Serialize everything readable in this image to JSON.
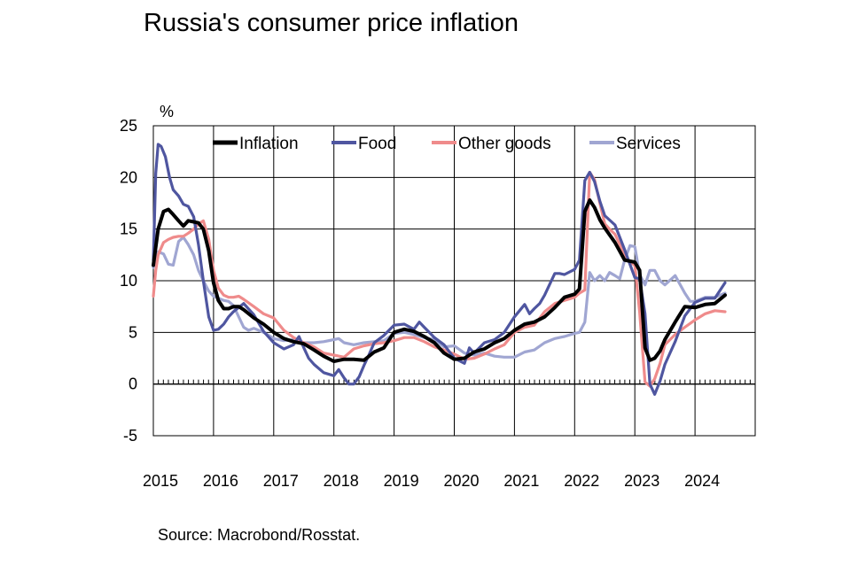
{
  "title": "Russia's consumer price inflation",
  "source": "Source: Macrobond/Rosstat.",
  "colors": {
    "Inflation": "#000000",
    "Food": "#4f56a0",
    "Other goods": "#ef8b8b",
    "Services": "#a0a6d2"
  },
  "chart_data": {
    "type": "line",
    "title": "Russia's consumer price inflation",
    "ylabel": "%",
    "xlabel": "",
    "ylim": [
      -5,
      25
    ],
    "xlim": [
      2015,
      2025
    ],
    "yticks": [
      -5,
      0,
      5,
      10,
      15,
      20,
      25
    ],
    "xticks": [
      "2015",
      "2016",
      "2017",
      "2018",
      "2019",
      "2020",
      "2021",
      "2022",
      "2023",
      "2024"
    ],
    "grid": true,
    "legend": "top",
    "series": [
      {
        "name": "Inflation",
        "x": [
          2015.0,
          2015.08,
          2015.17,
          2015.25,
          2015.33,
          2015.42,
          2015.5,
          2015.58,
          2015.67,
          2015.75,
          2015.83,
          2015.92,
          2016.0,
          2016.08,
          2016.17,
          2016.25,
          2016.33,
          2016.42,
          2016.5,
          2016.67,
          2016.83,
          2017.0,
          2017.17,
          2017.33,
          2017.5,
          2017.67,
          2017.83,
          2018.0,
          2018.17,
          2018.33,
          2018.5,
          2018.67,
          2018.83,
          2019.0,
          2019.17,
          2019.33,
          2019.5,
          2019.67,
          2019.83,
          2020.0,
          2020.17,
          2020.33,
          2020.5,
          2020.67,
          2020.83,
          2021.0,
          2021.17,
          2021.33,
          2021.5,
          2021.67,
          2021.83,
          2022.0,
          2022.08,
          2022.17,
          2022.25,
          2022.33,
          2022.42,
          2022.5,
          2022.67,
          2022.83,
          2023.0,
          2023.08,
          2023.17,
          2023.25,
          2023.33,
          2023.42,
          2023.5,
          2023.67,
          2023.83,
          2024.0,
          2024.17,
          2024.33,
          2024.5
        ],
        "values": [
          11.5,
          15.0,
          16.7,
          16.9,
          16.4,
          15.8,
          15.3,
          15.8,
          15.7,
          15.6,
          15.0,
          12.9,
          9.8,
          8.1,
          7.3,
          7.3,
          7.5,
          7.5,
          7.2,
          6.4,
          5.8,
          5.0,
          4.4,
          4.1,
          3.9,
          3.3,
          2.7,
          2.2,
          2.4,
          2.4,
          2.3,
          3.1,
          3.5,
          5.0,
          5.3,
          5.1,
          4.6,
          4.0,
          3.0,
          2.4,
          2.5,
          3.1,
          3.4,
          4.0,
          4.4,
          5.2,
          5.8,
          6.0,
          6.5,
          7.4,
          8.4,
          8.7,
          9.2,
          16.7,
          17.8,
          17.1,
          15.9,
          15.1,
          13.7,
          12.0,
          11.8,
          11.0,
          3.5,
          2.3,
          2.5,
          3.2,
          4.3,
          6.0,
          7.5,
          7.4,
          7.7,
          7.8,
          8.6
        ]
      },
      {
        "name": "Food",
        "x": [
          2015.0,
          2015.04,
          2015.08,
          2015.13,
          2015.2,
          2015.27,
          2015.33,
          2015.42,
          2015.5,
          2015.58,
          2015.67,
          2015.75,
          2015.83,
          2015.92,
          2016.0,
          2016.08,
          2016.17,
          2016.25,
          2016.33,
          2016.5,
          2016.67,
          2016.83,
          2017.0,
          2017.17,
          2017.33,
          2017.42,
          2017.5,
          2017.58,
          2017.67,
          2017.83,
          2018.0,
          2018.08,
          2018.17,
          2018.25,
          2018.33,
          2018.42,
          2018.5,
          2018.58,
          2018.67,
          2018.83,
          2019.0,
          2019.17,
          2019.33,
          2019.42,
          2019.5,
          2019.67,
          2019.83,
          2020.0,
          2020.17,
          2020.25,
          2020.33,
          2020.5,
          2020.67,
          2020.83,
          2021.0,
          2021.17,
          2021.25,
          2021.33,
          2021.42,
          2021.5,
          2021.67,
          2021.75,
          2021.83,
          2022.0,
          2022.08,
          2022.17,
          2022.25,
          2022.33,
          2022.42,
          2022.5,
          2022.67,
          2022.83,
          2023.0,
          2023.08,
          2023.17,
          2023.25,
          2023.33,
          2023.42,
          2023.5,
          2023.67,
          2023.83,
          2024.0,
          2024.17,
          2024.33,
          2024.5
        ],
        "values": [
          12.0,
          20.4,
          23.2,
          23.0,
          22.0,
          20.0,
          18.8,
          18.2,
          17.4,
          17.2,
          16.2,
          13.5,
          10.0,
          6.5,
          5.2,
          5.3,
          5.8,
          6.5,
          7.0,
          7.8,
          6.7,
          5.1,
          4.0,
          3.4,
          3.8,
          4.6,
          3.5,
          2.5,
          1.9,
          1.1,
          0.8,
          1.4,
          0.6,
          0.0,
          0.0,
          0.7,
          1.8,
          2.8,
          4.0,
          4.7,
          5.7,
          5.8,
          5.3,
          6.0,
          5.5,
          4.5,
          3.8,
          2.5,
          2.0,
          3.5,
          3.0,
          4.0,
          4.3,
          5.0,
          6.5,
          7.7,
          6.8,
          7.3,
          7.8,
          8.6,
          10.7,
          10.7,
          10.6,
          11.1,
          12.0,
          19.7,
          20.5,
          19.6,
          17.7,
          16.3,
          15.4,
          13.0,
          10.3,
          10.2,
          6.8,
          0.0,
          -1.0,
          0.3,
          1.9,
          4.1,
          6.6,
          7.9,
          8.3,
          8.3,
          9.8
        ]
      },
      {
        "name": "Other goods",
        "x": [
          2015.0,
          2015.04,
          2015.08,
          2015.17,
          2015.25,
          2015.33,
          2015.42,
          2015.5,
          2015.58,
          2015.67,
          2015.75,
          2015.83,
          2015.92,
          2016.0,
          2016.08,
          2016.17,
          2016.25,
          2016.33,
          2016.42,
          2016.5,
          2016.67,
          2016.83,
          2017.0,
          2017.17,
          2017.33,
          2017.5,
          2017.67,
          2017.83,
          2018.0,
          2018.17,
          2018.33,
          2018.5,
          2018.67,
          2018.83,
          2019.0,
          2019.17,
          2019.33,
          2019.5,
          2019.67,
          2019.83,
          2020.0,
          2020.17,
          2020.33,
          2020.5,
          2020.67,
          2020.83,
          2021.0,
          2021.17,
          2021.33,
          2021.5,
          2021.67,
          2021.83,
          2022.0,
          2022.08,
          2022.17,
          2022.25,
          2022.33,
          2022.42,
          2022.5,
          2022.58,
          2022.67,
          2022.75,
          2022.83,
          2022.92,
          2023.0,
          2023.08,
          2023.17,
          2023.25,
          2023.33,
          2023.42,
          2023.5,
          2023.67,
          2023.83,
          2024.0,
          2024.17,
          2024.33,
          2024.5
        ],
        "values": [
          8.5,
          11.0,
          12.5,
          13.7,
          14.0,
          14.2,
          14.3,
          14.3,
          14.6,
          15.0,
          15.5,
          15.8,
          14.0,
          11.0,
          9.3,
          8.6,
          8.4,
          8.4,
          8.5,
          8.2,
          7.5,
          6.8,
          6.4,
          5.2,
          4.5,
          4.0,
          3.6,
          3.0,
          2.8,
          2.6,
          3.4,
          3.7,
          3.9,
          4.0,
          4.2,
          4.5,
          4.5,
          4.1,
          3.6,
          3.3,
          2.9,
          2.4,
          2.5,
          2.9,
          3.4,
          3.8,
          5.0,
          5.5,
          5.7,
          7.0,
          7.8,
          8.1,
          8.4,
          8.8,
          9.1,
          20.5,
          19.8,
          17.5,
          15.5,
          15.0,
          14.5,
          13.5,
          12.5,
          11.8,
          11.5,
          7.0,
          0.2,
          -0.2,
          0.5,
          2.0,
          3.8,
          4.8,
          5.5,
          6.2,
          6.8,
          7.1,
          7.0
        ]
      },
      {
        "name": "Services",
        "x": [
          2015.0,
          2015.04,
          2015.08,
          2015.17,
          2015.25,
          2015.33,
          2015.42,
          2015.5,
          2015.58,
          2015.67,
          2015.75,
          2015.83,
          2015.92,
          2016.0,
          2016.08,
          2016.17,
          2016.25,
          2016.33,
          2016.5,
          2016.58,
          2016.67,
          2016.83,
          2017.0,
          2017.17,
          2017.33,
          2017.5,
          2017.67,
          2017.83,
          2018.0,
          2018.08,
          2018.17,
          2018.33,
          2018.5,
          2018.67,
          2018.83,
          2019.0,
          2019.17,
          2019.33,
          2019.5,
          2019.67,
          2019.83,
          2020.0,
          2020.17,
          2020.33,
          2020.5,
          2020.67,
          2020.83,
          2021.0,
          2021.17,
          2021.33,
          2021.5,
          2021.67,
          2021.83,
          2022.0,
          2022.08,
          2022.17,
          2022.25,
          2022.33,
          2022.42,
          2022.5,
          2022.58,
          2022.67,
          2022.75,
          2022.83,
          2022.92,
          2023.0,
          2023.08,
          2023.17,
          2023.25,
          2023.33,
          2023.42,
          2023.5,
          2023.67,
          2023.83,
          2023.92,
          2024.0,
          2024.17,
          2024.33,
          2024.5
        ],
        "values": [
          11.3,
          12.0,
          12.8,
          12.6,
          11.6,
          11.5,
          13.8,
          14.2,
          13.5,
          12.5,
          11.0,
          10.0,
          9.0,
          8.5,
          8.3,
          8.1,
          8.0,
          7.6,
          5.5,
          5.2,
          5.4,
          5.0,
          4.4,
          4.2,
          4.3,
          4.0,
          4.0,
          4.1,
          4.3,
          4.4,
          4.0,
          3.8,
          4.0,
          4.1,
          4.2,
          4.9,
          5.0,
          4.8,
          4.5,
          4.3,
          3.6,
          3.7,
          3.0,
          2.8,
          3.0,
          2.7,
          2.6,
          2.6,
          3.1,
          3.3,
          4.0,
          4.4,
          4.6,
          4.9,
          5.0,
          6.0,
          10.8,
          10.0,
          10.5,
          10.0,
          10.8,
          10.5,
          10.2,
          12.0,
          13.4,
          13.3,
          10.6,
          9.6,
          11.0,
          11.0,
          10.0,
          9.6,
          10.5,
          8.8,
          8.0,
          8.0,
          8.4,
          8.4,
          8.8
        ]
      }
    ]
  }
}
